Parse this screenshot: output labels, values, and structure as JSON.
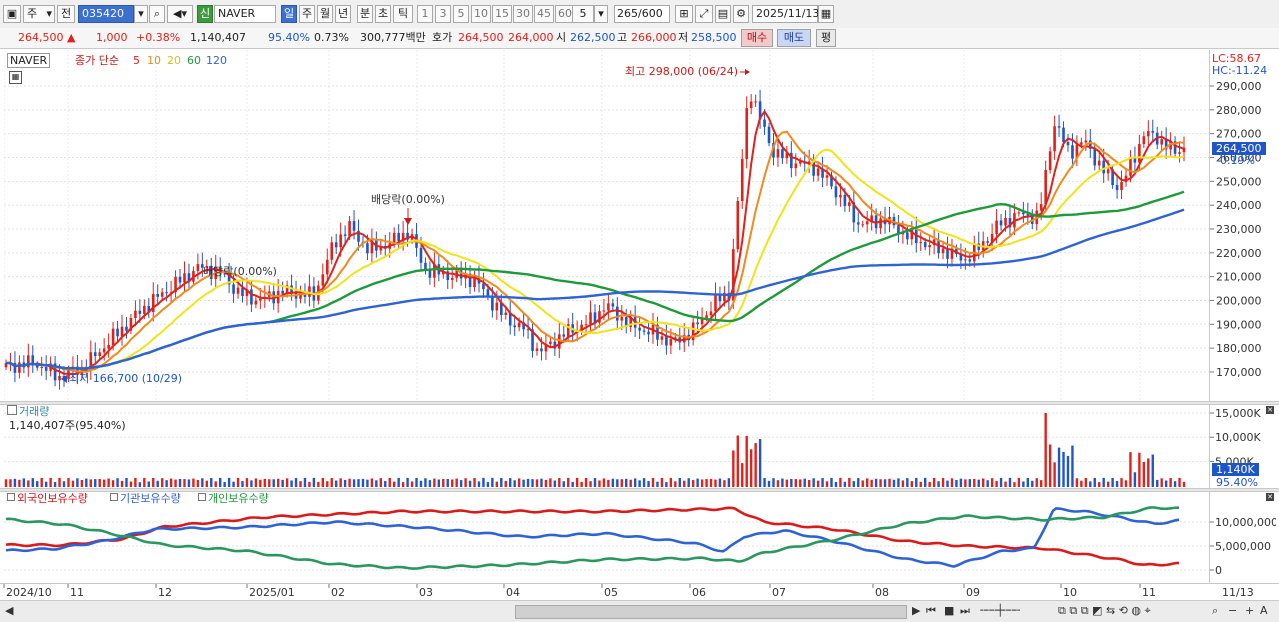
{
  "toolbar": {
    "market": "주",
    "prev_label": "전",
    "code": "035420",
    "badge": "신",
    "stock_name": "NAVER",
    "periods": [
      "일",
      "주",
      "월",
      "년",
      "분",
      "초",
      "틱"
    ],
    "active_period": "일",
    "intervals": [
      "1",
      "3",
      "5",
      "10",
      "15",
      "30",
      "45",
      "60"
    ],
    "interval_value": "5",
    "count": "265",
    "count_total": "/600",
    "date": "2025/11/13"
  },
  "quote": {
    "price": "264,500",
    "change": "1,000",
    "change_pct": "+0.38%",
    "volume": "1,140,407",
    "vol_ratio": "95.40%",
    "turnover": "0.73%",
    "amount": "300,777백만",
    "hoga_label": "호가",
    "ask": "264,500",
    "bid": "264,000",
    "open_label": "시",
    "open": "262,500",
    "high_label": "고",
    "high": "266,000",
    "low_label": "저",
    "low": "258,500",
    "buy_label": "매수",
    "sell_label": "매도",
    "avg_label": "평"
  },
  "price_panel": {
    "stock_label": "NAVER",
    "legend_prefix": "종가 단순",
    "ma_labels": [
      "5",
      "10",
      "20",
      "60",
      "120"
    ],
    "lc_label": "LC:58.67",
    "hc_label": "HC:-11.24",
    "current_price": "264,500",
    "current_change": "-0.19%",
    "y_ticks": [
      "290,000",
      "280,000",
      "270,000",
      "260,000",
      "250,000",
      "240,000",
      "230,000",
      "220,000",
      "210,000",
      "200,000",
      "190,000",
      "180,000",
      "170,000"
    ],
    "high_annotation": "최고 298,000 (06/24)",
    "low_annotation": "최저 166,700 (10/29)",
    "dividend_1": "배당락(0.00%)",
    "dividend_2": "배당락(0.00%)"
  },
  "volume_panel": {
    "title": "거래량",
    "value_label": "1,140,407주(95.40%)",
    "y_ticks": [
      "15,000K",
      "10,000K",
      "5,000K"
    ],
    "current": "1,140K",
    "current_pct": "95.40%"
  },
  "holdings_panel": {
    "legend": [
      "외국인보유수량",
      "기관보유수량",
      "개인보유수량"
    ],
    "y_ticks": [
      "10,000,000",
      "5,000,000",
      "0"
    ]
  },
  "x_axis": {
    "labels": [
      "2024/10",
      "11",
      "12",
      "2025/01",
      "02",
      "03",
      "04",
      "05",
      "06",
      "07",
      "08",
      "09",
      "10",
      "11"
    ],
    "end_label": "11/13"
  },
  "colors": {
    "up": "#e0221b",
    "down": "#1e55c8",
    "ma5": "#e0221b",
    "ma10": "#f08a1c",
    "ma20": "#f2e21a",
    "ma60": "#1f9a3b",
    "ma120": "#2f63d3"
  }
}
